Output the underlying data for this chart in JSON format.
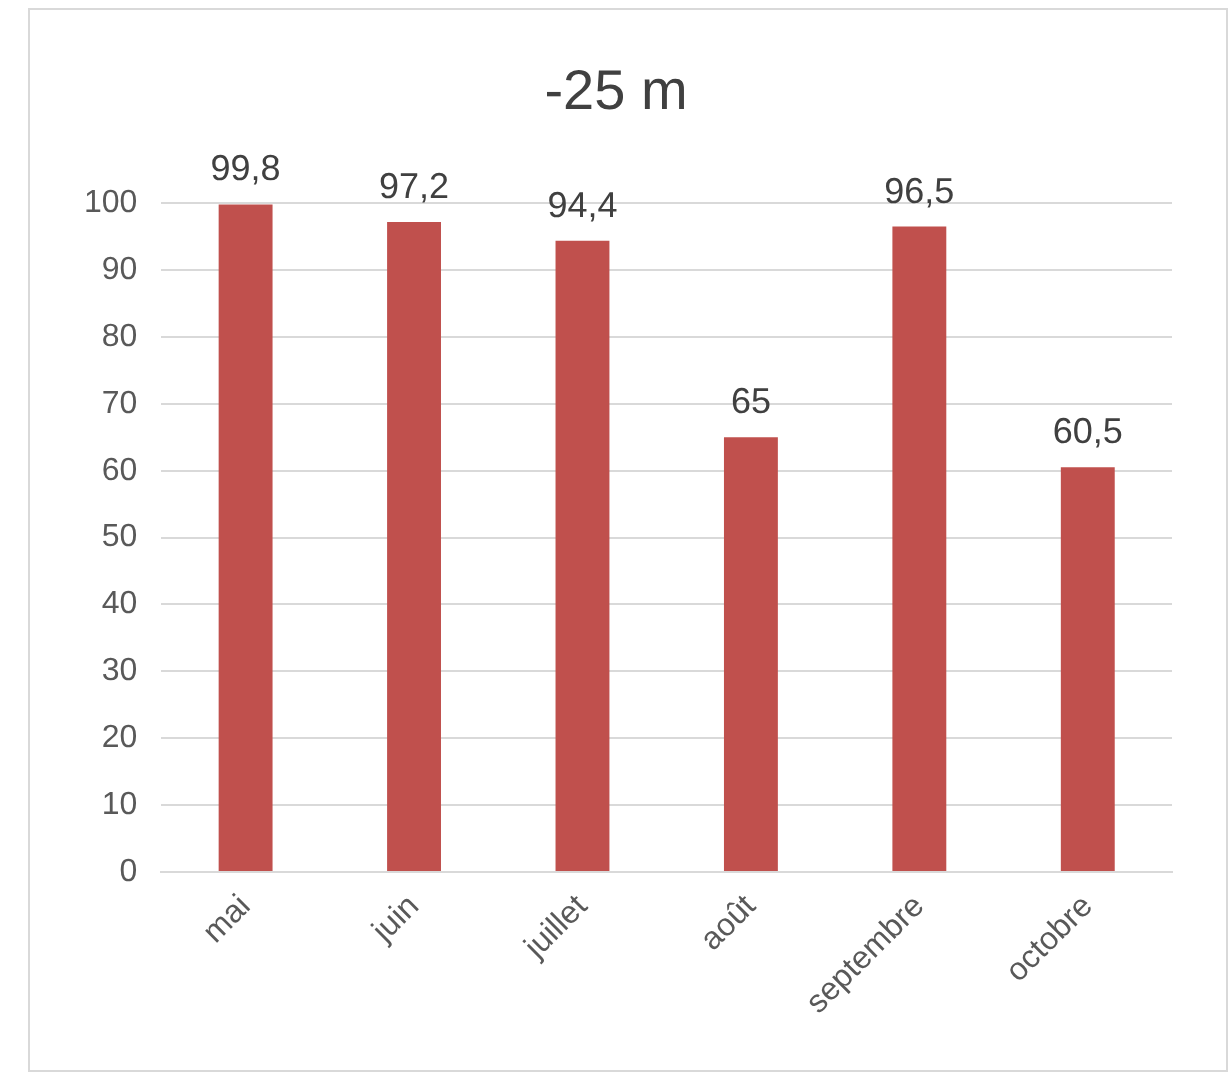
{
  "chart_data": {
    "type": "bar",
    "title": "-25 m",
    "categories": [
      "mai",
      "juin",
      "juillet",
      "août",
      "septembre",
      "octobre"
    ],
    "values": [
      99.8,
      97.2,
      94.4,
      65,
      96.5,
      60.5
    ],
    "value_labels": [
      "99,8",
      "97,2",
      "94,4",
      "65",
      "96,5",
      "60,5"
    ],
    "color": "#c0504d",
    "ylim": [
      0,
      100
    ],
    "yticks": [
      0,
      10,
      20,
      30,
      40,
      50,
      60,
      70,
      80,
      90,
      100
    ],
    "grid": "y",
    "legend": false
  }
}
